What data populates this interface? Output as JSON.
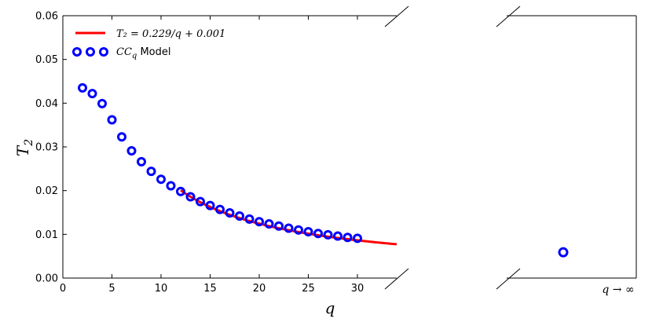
{
  "chart_data": {
    "type": "scatter",
    "xlabel": "q",
    "ylabel": "T",
    "ylabel_sub": "2",
    "xlim": [
      0,
      34
    ],
    "ylim": [
      0,
      0.06
    ],
    "xticks": [
      "0",
      "5",
      "10",
      "15",
      "20",
      "25",
      "30"
    ],
    "yticks": [
      "0.00",
      "0.01",
      "0.02",
      "0.03",
      "0.04",
      "0.05",
      "0.06"
    ],
    "right_panel_label": "q → ∞",
    "legend": {
      "placement": "top-left",
      "fit_label": "T₂ = 0.229/q + 0.001",
      "model_label_math": "CC",
      "model_label_sub": "q",
      "model_label_text": " Model"
    },
    "colors": {
      "fit": "#ff0000",
      "points": "#0000ff"
    },
    "series": [
      {
        "kind": "points",
        "x": [
          2,
          3,
          4,
          5,
          6,
          7,
          8,
          9,
          10,
          11,
          12,
          13,
          14,
          15,
          16,
          17,
          18,
          19,
          20,
          21,
          22,
          23,
          24,
          25,
          26,
          27,
          28,
          29,
          30
        ],
        "y": [
          0.0435,
          0.0422,
          0.0399,
          0.0362,
          0.0323,
          0.0291,
          0.0266,
          0.0244,
          0.0226,
          0.0211,
          0.0198,
          0.0186,
          0.0175,
          0.0166,
          0.0157,
          0.0149,
          0.0142,
          0.0135,
          0.0129,
          0.0124,
          0.0119,
          0.0114,
          0.011,
          0.0106,
          0.0102,
          0.0099,
          0.0096,
          0.0093,
          0.0091
        ]
      },
      {
        "kind": "fit",
        "coeff_a": 0.229,
        "coeff_b": 0.001,
        "x_range": [
          12,
          34
        ]
      }
    ],
    "limit_point": {
      "y": 0.0059
    }
  }
}
